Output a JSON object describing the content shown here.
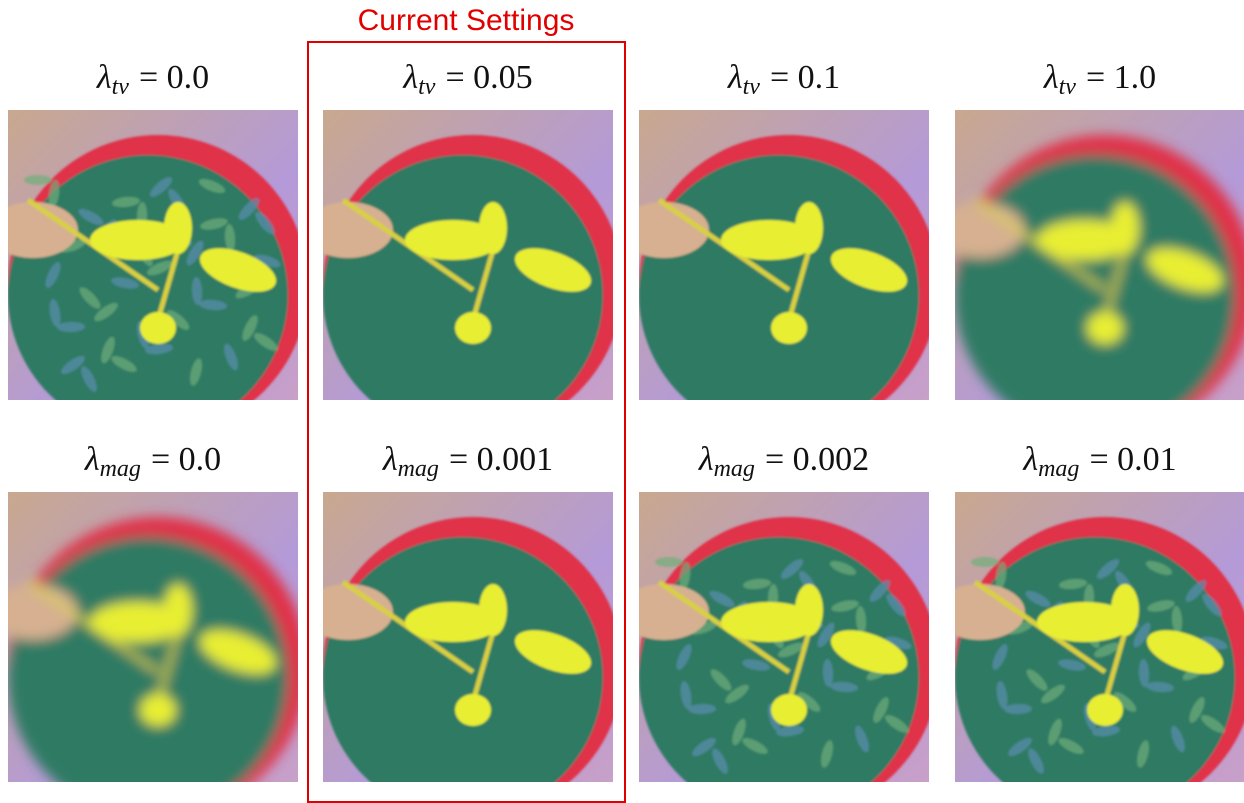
{
  "highlight": {
    "title": "Current Settings"
  },
  "rows": [
    {
      "labels": [
        {
          "base": "λ",
          "sub": "tv",
          "rest": "= 0.0"
        },
        {
          "base": "λ",
          "sub": "tv",
          "rest": "= 0.05"
        },
        {
          "base": "λ",
          "sub": "tv",
          "rest": "= 0.1"
        },
        {
          "base": "λ",
          "sub": "tv",
          "rest": "= 1.0"
        }
      ]
    },
    {
      "labels": [
        {
          "base": "λ",
          "sub": "mag",
          "rest": "= 0.0"
        },
        {
          "base": "λ",
          "sub": "mag",
          "rest": "= 0.001"
        },
        {
          "base": "λ",
          "sub": "mag",
          "rest": "= 0.002"
        },
        {
          "base": "λ",
          "sub": "mag",
          "rest": "= 0.01"
        }
      ]
    }
  ]
}
